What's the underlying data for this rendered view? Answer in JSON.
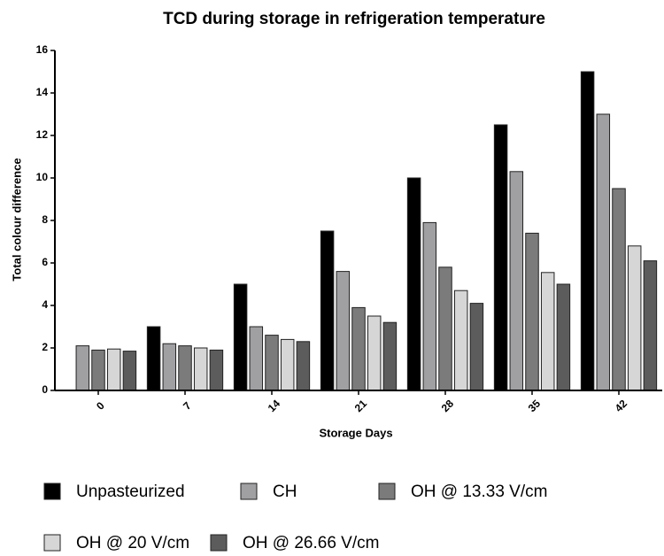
{
  "chart_data": {
    "type": "bar",
    "title": "TCD during storage in refrigeration temperature",
    "x_label": "Storage Days",
    "y_label": "Total colour difference",
    "categories": [
      "0",
      "7",
      "14",
      "21",
      "28",
      "35",
      "42"
    ],
    "series": [
      {
        "name": "Unpasteurized",
        "color": "#000000",
        "values": [
          0,
          3.0,
          5.0,
          7.5,
          10.0,
          12.5,
          15.0
        ]
      },
      {
        "name": "CH",
        "color": "#a0a0a3",
        "values": [
          2.1,
          2.2,
          3.0,
          5.6,
          7.9,
          10.3,
          13.0
        ]
      },
      {
        "name": "OH @ 13.33 V/cm",
        "color": "#7b7b7b",
        "values": [
          1.9,
          2.1,
          2.6,
          3.9,
          5.8,
          7.4,
          9.5
        ]
      },
      {
        "name": "OH @ 20 V/cm",
        "color": "#d6d6d6",
        "values": [
          1.95,
          2.0,
          2.4,
          3.5,
          4.7,
          5.55,
          6.8
        ]
      },
      {
        "name": "OH @ 26.66 V/cm",
        "color": "#5c5c5c",
        "values": [
          1.85,
          1.9,
          2.3,
          3.2,
          4.1,
          5.0,
          6.1
        ]
      }
    ],
    "ylim": [
      0,
      16
    ],
    "yticks": [
      0,
      2,
      4,
      6,
      8,
      10,
      12,
      14,
      16
    ]
  }
}
